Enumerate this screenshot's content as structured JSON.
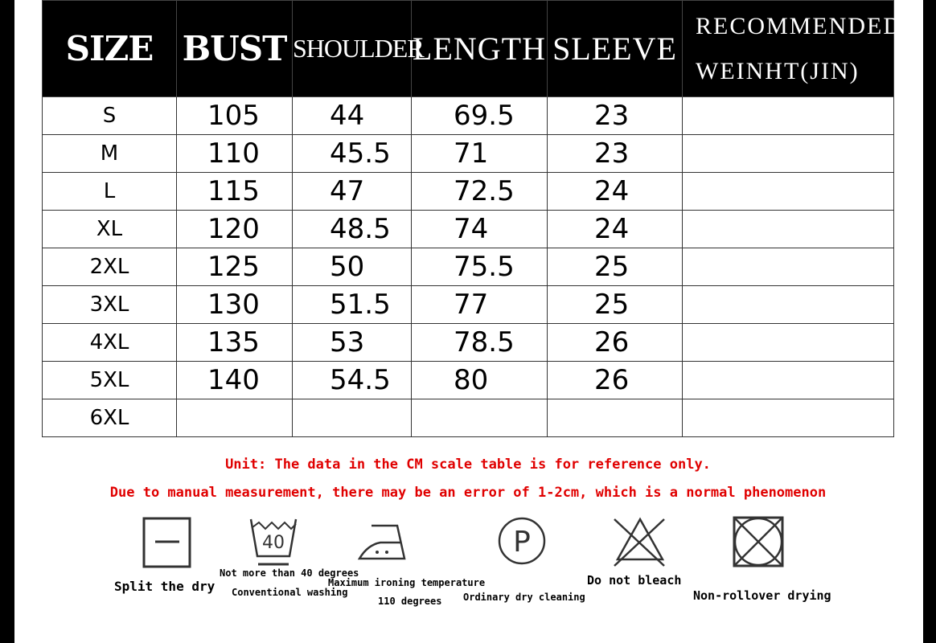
{
  "headers": {
    "size": "SIZE",
    "bust": "BUST",
    "shoulder": "SHOULDER",
    "length": "LENGTH",
    "sleeve": "SLEEVE",
    "recommended_1": "RECOMMENDED",
    "recommended_2": "WEINHT(JIN)"
  },
  "rows": [
    {
      "size": "S",
      "bust": "105",
      "shoulder": "44",
      "length": "69.5",
      "sleeve": "23",
      "weight": ""
    },
    {
      "size": "M",
      "bust": "110",
      "shoulder": "45.5",
      "length": "71",
      "sleeve": "23",
      "weight": ""
    },
    {
      "size": "L",
      "bust": "115",
      "shoulder": "47",
      "length": "72.5",
      "sleeve": "24",
      "weight": ""
    },
    {
      "size": "XL",
      "bust": "120",
      "shoulder": "48.5",
      "length": "74",
      "sleeve": "24",
      "weight": ""
    },
    {
      "size": "2XL",
      "bust": "125",
      "shoulder": "50",
      "length": "75.5",
      "sleeve": "25",
      "weight": ""
    },
    {
      "size": "3XL",
      "bust": "130",
      "shoulder": "51.5",
      "length": "77",
      "sleeve": "25",
      "weight": ""
    },
    {
      "size": "4XL",
      "bust": "135",
      "shoulder": "53",
      "length": "78.5",
      "sleeve": "26",
      "weight": ""
    },
    {
      "size": "5XL",
      "bust": "140",
      "shoulder": "54.5",
      "length": "80",
      "sleeve": "26",
      "weight": ""
    },
    {
      "size": "6XL",
      "bust": "",
      "shoulder": "",
      "length": "",
      "sleeve": "",
      "weight": ""
    }
  ],
  "notes": {
    "unit": "Unit: The data in the CM scale table is for reference only.",
    "error": "Due to manual measurement, there may be an error of 1-2cm, which is a normal phenomenon"
  },
  "note_color": "#e00000",
  "care": {
    "dry": "Split the dry",
    "wash_1": "Not more than 40 degrees",
    "wash_2": "Conventional washing",
    "wash_temp": "40",
    "iron_1": "Maximum ironing temperature",
    "iron_2": "110 degrees",
    "dryclean": "Ordinary dry cleaning",
    "dryclean_letter": "P",
    "bleach": "Do not bleach",
    "tumble": "Non-rollover drying"
  }
}
